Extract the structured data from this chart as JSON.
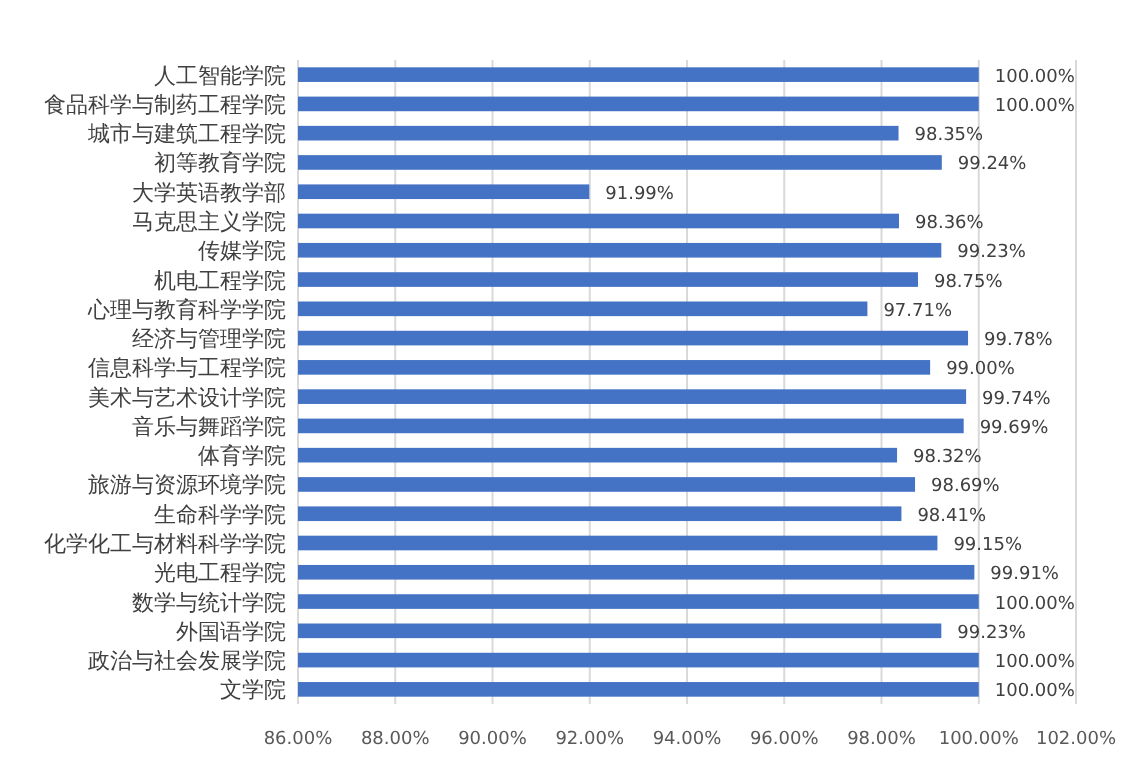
{
  "chart_data": {
    "type": "bar",
    "orientation": "horizontal",
    "categories": [
      "人工智能学院",
      "食品科学与制药工程学院",
      "城市与建筑工程学院",
      "初等教育学院",
      "大学英语教学部",
      "马克思主义学院",
      "传媒学院",
      "机电工程学院",
      "心理与教育科学学院",
      "经济与管理学院",
      "信息科学与工程学院",
      "美术与艺术设计学院",
      "音乐与舞蹈学院",
      "体育学院",
      "旅游与资源环境学院",
      "生命科学学院",
      "化学化工与材料科学学院",
      "光电工程学院",
      "数学与统计学院",
      "外国语学院",
      "政治与社会发展学院",
      "文学院"
    ],
    "values": [
      100.0,
      100.0,
      98.35,
      99.24,
      91.99,
      98.36,
      99.23,
      98.75,
      97.71,
      99.78,
      99.0,
      99.74,
      99.69,
      98.32,
      98.69,
      98.41,
      99.15,
      99.91,
      100.0,
      99.23,
      100.0,
      100.0
    ],
    "value_labels": [
      "100.00%",
      "100.00%",
      "98.35%",
      "99.24%",
      "91.99%",
      "98.36%",
      "99.23%",
      "98.75%",
      "97.71%",
      "99.78%",
      "99.00%",
      "99.74%",
      "99.69%",
      "98.32%",
      "98.69%",
      "98.41%",
      "99.15%",
      "99.91%",
      "100.00%",
      "99.23%",
      "100.00%",
      "100.00%"
    ],
    "color": "#4472c4",
    "xlim": [
      86,
      102
    ],
    "xticks": [
      {
        "value": 86,
        "label": "86.00%"
      },
      {
        "value": 88,
        "label": "88.00%"
      },
      {
        "value": 90,
        "label": "90.00%"
      },
      {
        "value": 92,
        "label": "92.00%"
      },
      {
        "value": 94,
        "label": "94.00%"
      },
      {
        "value": 96,
        "label": "96.00%"
      },
      {
        "value": 98,
        "label": "98.00%"
      },
      {
        "value": 100,
        "label": "100.00%"
      },
      {
        "value": 102,
        "label": "102.00%"
      }
    ],
    "grid": "x"
  }
}
